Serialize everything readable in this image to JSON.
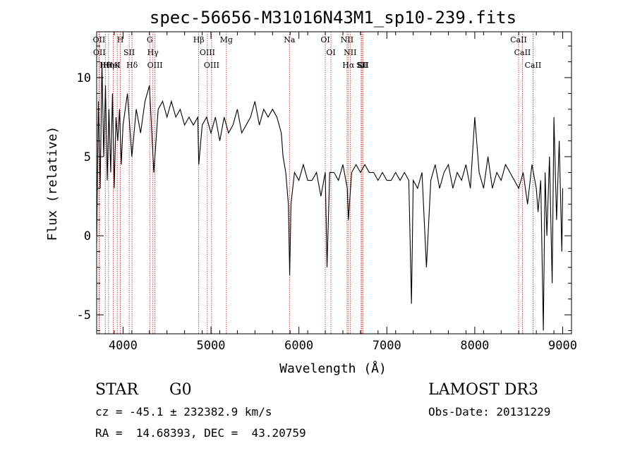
{
  "chart_data": {
    "type": "line",
    "title": "spec-56656-M31016N43M1_sp10-239.fits",
    "xlabel": "Wavelength (Å)",
    "ylabel": "Flux (relative)",
    "xlim": [
      3700,
      9100
    ],
    "ylim": [
      -6.2,
      12.9
    ],
    "x_ticks": [
      4000,
      5000,
      6000,
      7000,
      8000,
      9000
    ],
    "y_ticks": [
      -5,
      0,
      5,
      10
    ],
    "grid": false,
    "line_color": "#000000",
    "marker_color": "#b22222",
    "series": [
      {
        "x": [
          3700,
          3720,
          3740,
          3760,
          3780,
          3800,
          3820,
          3840,
          3860,
          3880,
          3900,
          3920,
          3940,
          3960,
          3980,
          4000,
          4050,
          4100,
          4150,
          4200,
          4250,
          4300,
          4350,
          4400,
          4450,
          4500,
          4550,
          4600,
          4650,
          4700,
          4750,
          4800,
          4850,
          4861,
          4900,
          4950,
          5000,
          5050,
          5100,
          5150,
          5200,
          5250,
          5300,
          5350,
          5400,
          5450,
          5500,
          5550,
          5600,
          5650,
          5700,
          5750,
          5800,
          5820,
          5850,
          5880,
          5895,
          5910,
          5930,
          5950,
          6000,
          6050,
          6100,
          6150,
          6200,
          6250,
          6300,
          6320,
          6350,
          6400,
          6450,
          6500,
          6550,
          6563,
          6600,
          6650,
          6700,
          6750,
          6800,
          6850,
          6900,
          6950,
          7000,
          7050,
          7100,
          7150,
          7200,
          7250,
          7280,
          7300,
          7350,
          7400,
          7450,
          7500,
          7550,
          7600,
          7650,
          7700,
          7750,
          7800,
          7850,
          7900,
          7950,
          8000,
          8050,
          8100,
          8150,
          8200,
          8250,
          8300,
          8350,
          8400,
          8450,
          8500,
          8550,
          8600,
          8650,
          8700,
          8720,
          8750,
          8780,
          8800,
          8820,
          8850,
          8880,
          8900,
          8930,
          8960,
          8990,
          9000
        ],
        "y": [
          -0.5,
          8.5,
          3.0,
          11.0,
          5.0,
          9.5,
          3.5,
          8.0,
          4.0,
          9.0,
          3.0,
          7.5,
          6.0,
          8.0,
          4.5,
          7.0,
          9.0,
          5.0,
          8.0,
          6.5,
          8.5,
          9.5,
          4.0,
          8.0,
          8.5,
          7.5,
          8.5,
          7.5,
          8.0,
          7.0,
          7.5,
          7.0,
          7.5,
          4.5,
          7.0,
          7.5,
          6.5,
          7.5,
          6.0,
          7.5,
          6.5,
          7.0,
          8.0,
          6.5,
          7.0,
          7.5,
          8.5,
          7.0,
          8.0,
          7.5,
          8.0,
          7.5,
          6.5,
          5.0,
          4.0,
          2.0,
          -2.5,
          2.0,
          3.0,
          4.0,
          3.5,
          4.5,
          3.5,
          3.5,
          4.0,
          2.5,
          4.0,
          -2.0,
          4.0,
          4.0,
          3.5,
          4.5,
          3.0,
          1.0,
          4.0,
          4.5,
          4.0,
          4.5,
          4.0,
          4.0,
          3.5,
          4.0,
          3.5,
          3.5,
          4.0,
          3.5,
          4.0,
          3.5,
          -4.3,
          3.5,
          3.0,
          4.0,
          -2.0,
          3.5,
          4.5,
          3.0,
          4.0,
          4.5,
          3.0,
          4.0,
          3.5,
          4.5,
          3.0,
          7.5,
          4.0,
          3.0,
          5.0,
          3.0,
          4.0,
          3.5,
          4.5,
          4.0,
          3.5,
          3.0,
          4.0,
          2.0,
          4.5,
          3.0,
          1.5,
          3.5,
          -6.0,
          4.0,
          0.0,
          5.0,
          -3.0,
          7.5,
          1.0,
          6.0,
          -1.0,
          3.0
        ]
      }
    ],
    "line_labels": [
      {
        "name": "Hθ",
        "x": 3798
      },
      {
        "name": "OII",
        "x": 3727
      },
      {
        "name": "OII",
        "x": 3730
      },
      {
        "name": "K",
        "x": 3934
      },
      {
        "name": "HeI",
        "x": 3889
      },
      {
        "name": "Hη",
        "x": 3835
      },
      {
        "name": "H",
        "x": 3969
      },
      {
        "name": "Hδ",
        "x": 4102
      },
      {
        "name": "SII",
        "x": 4070
      },
      {
        "name": "OIII",
        "x": 4363
      },
      {
        "name": "Hγ",
        "x": 4340
      },
      {
        "name": "G",
        "x": 4304
      },
      {
        "name": "OIII",
        "x": 5007
      },
      {
        "name": "OIII",
        "x": 4959
      },
      {
        "name": "Hβ",
        "x": 4861
      },
      {
        "name": "Mg",
        "x": 5175
      },
      {
        "name": "Na",
        "x": 5893
      },
      {
        "name": "OI",
        "x": 6300
      },
      {
        "name": "OI",
        "x": 6364
      },
      {
        "name": "Hα",
        "x": 6563
      },
      {
        "name": "SII",
        "x": 6717
      },
      {
        "name": "NII",
        "x": 6548
      },
      {
        "name": "NII",
        "x": 6583
      },
      {
        "name": "Li",
        "x": 6708
      },
      {
        "name": "SII",
        "x": 6731
      },
      {
        "name": "CaII",
        "x": 8542
      },
      {
        "name": "CaII",
        "x": 8498
      },
      {
        "name": "CaII",
        "x": 8662
      }
    ]
  },
  "info": {
    "object_class": "STAR",
    "subclass": "G0",
    "survey": "LAMOST DR3",
    "cz": "cz = -45.1 ± 232382.9 km/s",
    "obs_date": "Obs-Date: 20131229",
    "coords": "RA =  14.68393, DEC =  43.20759"
  }
}
